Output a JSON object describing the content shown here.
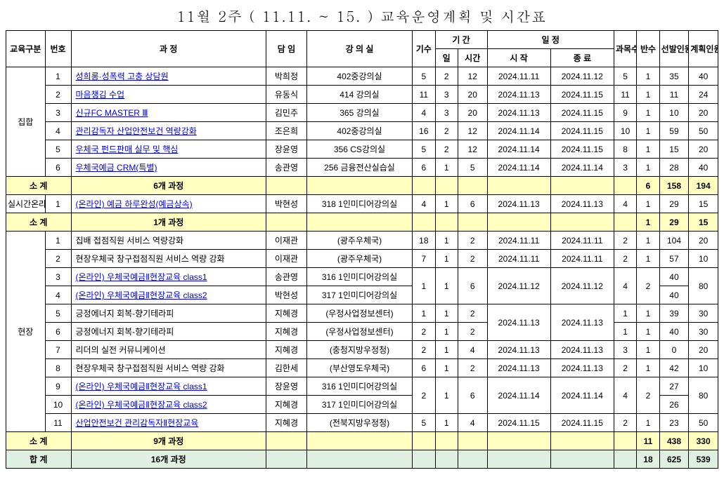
{
  "title": "11월 2주 ( 11.11. ~ 15. ) 교육운영계획 및 시간표",
  "headers": {
    "category": "교육구분",
    "no": "번호",
    "course": "과 정",
    "manager": "담 임",
    "room": "강 의 실",
    "sessions": "기수",
    "period": "기 간",
    "days": "일",
    "hours": "시간",
    "schedule": "일 정",
    "start": "시 작",
    "end": "종 료",
    "subjects": "과목수",
    "classes": "반수",
    "selected": "선발인원",
    "planned": "계획인원"
  },
  "groups": [
    {
      "name": "집합",
      "rows": [
        {
          "no": "1",
          "course": "성희롱·성폭력 고충 상담원",
          "link": true,
          "manager": "박희정",
          "room": "402중강의실",
          "sess": "5",
          "days": "2",
          "hours": "12",
          "start": "2024.11.11",
          "end": "2024.11.12",
          "subj": "5",
          "cls": "1",
          "sel": "35",
          "plan": "40"
        },
        {
          "no": "2",
          "course": "마음챙김 수업",
          "link": true,
          "manager": "유동식",
          "room": "414 강의실",
          "sess": "11",
          "days": "3",
          "hours": "20",
          "start": "2024.11.13",
          "end": "2024.11.15",
          "subj": "11",
          "cls": "1",
          "sel": "11",
          "plan": "24"
        },
        {
          "no": "3",
          "course": "신규FC MASTER Ⅲ",
          "link": true,
          "manager": "김민주",
          "room": "365 강의실",
          "sess": "4",
          "days": "3",
          "hours": "20",
          "start": "2024.11.13",
          "end": "2024.11.15",
          "subj": "9",
          "cls": "1",
          "sel": "10",
          "plan": "20"
        },
        {
          "no": "4",
          "course": "관리감독자 산업안전보건 역량강화",
          "link": true,
          "manager": "조은희",
          "room": "402중강의실",
          "sess": "16",
          "days": "2",
          "hours": "12",
          "start": "2024.11.14",
          "end": "2024.11.15",
          "subj": "10",
          "cls": "1",
          "sel": "59",
          "plan": "50"
        },
        {
          "no": "5",
          "course": "우체국 펀드판매 실무 및 핵심",
          "link": true,
          "manager": "장윤영",
          "room": "356 CS강의실",
          "sess": "5",
          "days": "2",
          "hours": "12",
          "start": "2024.11.14",
          "end": "2024.11.15",
          "subj": "8",
          "cls": "1",
          "sel": "15",
          "plan": "20"
        },
        {
          "no": "6",
          "course": "우체국예금 CRM(특별)",
          "link": true,
          "manager": "송관영",
          "room": "256 금융전산실습실",
          "sess": "6",
          "days": "1",
          "hours": "5",
          "start": "2024.11.14",
          "end": "2024.11.14",
          "subj": "3",
          "cls": "1",
          "sel": "28",
          "plan": "40"
        }
      ],
      "subtotal": {
        "label": "소 계",
        "courses": "6개 과정",
        "cls": "6",
        "sel": "158",
        "plan": "194"
      }
    },
    {
      "name": "실시간온라인",
      "rows": [
        {
          "no": "1",
          "course": "(온라인) 예금 하루완성(예금상속)",
          "link": true,
          "manager": "박현성",
          "room": "318 1인미디어강의실",
          "sess": "4",
          "days": "1",
          "hours": "6",
          "start": "2024.11.13",
          "end": "2024.11.13",
          "subj": "4",
          "cls": "1",
          "sel": "29",
          "plan": "15"
        }
      ],
      "subtotal": {
        "label": "소 계",
        "courses": "1개 과정",
        "cls": "1",
        "sel": "29",
        "plan": "15"
      }
    }
  ],
  "field_group": {
    "name": "현장",
    "rows": [
      {
        "no": "1",
        "course": "집배 접점직원 서비스 역량강화",
        "link": false,
        "manager": "이재관",
        "room": "(광주우체국)",
        "sess": "18",
        "days": "1",
        "hours": "2",
        "start": "2024.11.11",
        "end": "2024.11.11",
        "subj": "2",
        "cls": "1",
        "sel": "104",
        "plan": "20"
      },
      {
        "no": "2",
        "course": "현장우체국 창구접점직원 서비스 역량 강화",
        "link": false,
        "manager": "이재관",
        "room": "(광주우체국)",
        "sess": "7",
        "days": "1",
        "hours": "2",
        "start": "2024.11.11",
        "end": "2024.11.11",
        "subj": "2",
        "cls": "1",
        "sel": "57",
        "plan": "10"
      },
      {
        "no": "3",
        "course": "(온라인) 우체국예금Ⅱ현장교육 class1",
        "link": true,
        "manager": "송관영",
        "room": "316 1인미디어강의실",
        "sel": "40"
      },
      {
        "no": "4",
        "course": "(온라인) 우체국예금Ⅱ현장교육 class2",
        "link": true,
        "manager": "박현성",
        "room": "317 1인미디어강의실",
        "sel": "40"
      },
      {
        "no": "5",
        "course": "긍정에너지 회복-향기테라피",
        "link": false,
        "manager": "지혜경",
        "room": "(우정사업정보센터)",
        "sess": "1",
        "days": "1",
        "hours": "2",
        "subj": "1",
        "cls": "1",
        "sel": "39",
        "plan": "30"
      },
      {
        "no": "6",
        "course": "긍정에너지 회복-향기테라피",
        "link": false,
        "manager": "지혜경",
        "room": "(우정사업정보센터)",
        "sess": "2",
        "days": "1",
        "hours": "2",
        "subj": "1",
        "cls": "1",
        "sel": "40",
        "plan": "30"
      },
      {
        "no": "7",
        "course": "리더의 실전 커뮤니케이션",
        "link": false,
        "manager": "지혜경",
        "room": "(충청지방우정청)",
        "sess": "2",
        "days": "1",
        "hours": "4",
        "start": "2024.11.13",
        "end": "2024.11.13",
        "subj": "3",
        "cls": "1",
        "sel": "0",
        "plan": "20"
      },
      {
        "no": "8",
        "course": "현장우체국 창구접점직원 서비스 역량 강화",
        "link": false,
        "manager": "김한세",
        "room": "(부산영도우체국)",
        "sess": "6",
        "days": "1",
        "hours": "2",
        "start": "2024.11.13",
        "end": "2024.11.13",
        "subj": "2",
        "cls": "1",
        "sel": "42",
        "plan": "10"
      },
      {
        "no": "9",
        "course": "(온라인) 우체국예금Ⅱ현장교육 class1",
        "link": true,
        "manager": "장윤영",
        "room": "316 1인미디어강의실",
        "sel": "27"
      },
      {
        "no": "10",
        "course": "(온라인) 우체국예금Ⅱ현장교육 class2",
        "link": true,
        "manager": "지혜경",
        "room": "317 1인미디어강의실",
        "sel": "26"
      },
      {
        "no": "11",
        "course": "산업안전보건 관리감독자Ⅱ현장교육",
        "link": true,
        "manager": "지혜경",
        "room": "(전북지방우정청)",
        "sess": "5",
        "days": "1",
        "hours": "4",
        "start": "2024.11.15",
        "end": "2024.11.15",
        "subj": "2",
        "cls": "1",
        "sel": "23",
        "plan": "50"
      }
    ],
    "merge34": {
      "sess": "1",
      "days": "1",
      "hours": "6",
      "start": "2024.11.12",
      "end": "2024.11.12",
      "subj": "4",
      "cls": "2",
      "plan": "80"
    },
    "merge56": {
      "start": "2024.11.13",
      "end": "2024.11.13"
    },
    "merge910": {
      "sess": "2",
      "days": "1",
      "hours": "6",
      "start": "2024.11.14",
      "end": "2024.11.14",
      "subj": "4",
      "cls": "2",
      "plan": "80"
    },
    "subtotal": {
      "label": "소 계",
      "courses": "9개 과정",
      "cls": "11",
      "sel": "438",
      "plan": "330"
    }
  },
  "grandtotal": {
    "label": "합  계",
    "courses": "16개 과정",
    "cls": "18",
    "sel": "625",
    "plan": "539"
  }
}
